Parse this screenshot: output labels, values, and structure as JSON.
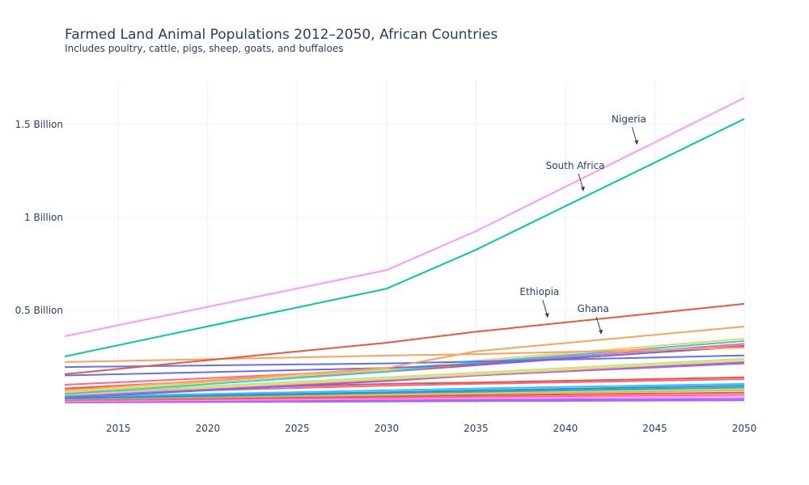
{
  "chart_data": {
    "type": "line",
    "title": "Farmed Land Animal Populations 2012–2050, African Countries",
    "subtitle": "Includes poultry, cattle, pigs, sheep, goats, and buffaloes",
    "xlabel": "",
    "ylabel": "",
    "x": [
      2012,
      2030,
      2035,
      2050
    ],
    "xlim": [
      2012,
      2050
    ],
    "ylim": [
      -0.02,
      1.75
    ],
    "y_unit": "Billion",
    "x_ticks": [
      2015,
      2020,
      2025,
      2030,
      2035,
      2040,
      2045,
      2050
    ],
    "y_ticks": [
      {
        "value": 0.5,
        "label": "0.5 Billion"
      },
      {
        "value": 1.0,
        "label": "1 Billion"
      },
      {
        "value": 1.5,
        "label": "1.5 Billion"
      }
    ],
    "grid": true,
    "legend": "none",
    "series": [
      {
        "name": "Nigeria",
        "color": "#FF97FF",
        "values": [
          0.361,
          0.717,
          0.926,
          1.643
        ]
      },
      {
        "name": "South Africa",
        "color": "#00CC96",
        "values": [
          0.252,
          0.617,
          0.826,
          1.53
        ]
      },
      {
        "name": "Ethiopia",
        "color": "#EF553B",
        "values": [
          0.157,
          0.326,
          0.385,
          0.535
        ]
      },
      {
        "name": "Ghana",
        "color": "#FFA15A",
        "values": [
          0.07,
          0.19,
          0.28,
          0.413
        ]
      },
      {
        "name": "",
        "color": "#FFA15A",
        "values": [
          0.222,
          0.257,
          0.265,
          0.3
        ]
      },
      {
        "name": "",
        "color": "#636EFA",
        "values": [
          0.195,
          0.215,
          0.225,
          0.258
        ]
      },
      {
        "name": "",
        "color": "#636EFA",
        "values": [
          0.15,
          0.19,
          0.21,
          0.305
        ]
      },
      {
        "name": "",
        "color": "#FECB52",
        "values": [
          0.06,
          0.18,
          0.23,
          0.348
        ]
      },
      {
        "name": "",
        "color": "#19D3F3",
        "values": [
          0.05,
          0.17,
          0.22,
          0.335
        ]
      },
      {
        "name": "",
        "color": "#FF6692",
        "values": [
          0.1,
          0.18,
          0.215,
          0.32
        ]
      },
      {
        "name": "",
        "color": "#EF553B",
        "values": [
          0.08,
          0.17,
          0.205,
          0.31
        ]
      },
      {
        "name": "",
        "color": "#B6E880",
        "values": [
          0.055,
          0.14,
          0.165,
          0.24
        ]
      },
      {
        "name": "",
        "color": "#FECB52",
        "values": [
          0.045,
          0.13,
          0.155,
          0.23
        ]
      },
      {
        "name": "",
        "color": "#AB63FA",
        "values": [
          0.04,
          0.125,
          0.15,
          0.215
        ]
      },
      {
        "name": "",
        "color": "#636EFA",
        "values": [
          0.03,
          0.12,
          0.15,
          0.22
        ]
      },
      {
        "name": "",
        "color": "#EF553B",
        "values": [
          0.06,
          0.105,
          0.112,
          0.14
        ]
      },
      {
        "name": "",
        "color": "#FF6692",
        "values": [
          0.05,
          0.095,
          0.105,
          0.13
        ]
      },
      {
        "name": "",
        "color": "#19D3F3",
        "values": [
          0.035,
          0.07,
          0.08,
          0.105
        ]
      },
      {
        "name": "",
        "color": "#636EFA",
        "values": [
          0.03,
          0.06,
          0.07,
          0.095
        ]
      },
      {
        "name": "",
        "color": "#00CC96",
        "values": [
          0.025,
          0.055,
          0.062,
          0.085
        ]
      },
      {
        "name": "",
        "color": "#B6E880",
        "values": [
          0.028,
          0.05,
          0.058,
          0.078
        ]
      },
      {
        "name": "",
        "color": "#FFA15A",
        "values": [
          0.022,
          0.045,
          0.052,
          0.07
        ]
      },
      {
        "name": "",
        "color": "#EF553B",
        "values": [
          0.02,
          0.038,
          0.044,
          0.058
        ]
      },
      {
        "name": "",
        "color": "#FF6692",
        "values": [
          0.016,
          0.03,
          0.035,
          0.046
        ]
      },
      {
        "name": "",
        "color": "#FF97FF",
        "values": [
          0.012,
          0.024,
          0.028,
          0.036
        ]
      },
      {
        "name": "",
        "color": "#AB63FA",
        "values": [
          0.008,
          0.016,
          0.019,
          0.025
        ]
      },
      {
        "name": "",
        "color": "#AB63FA",
        "values": [
          0.005,
          0.01,
          0.012,
          0.016
        ]
      }
    ],
    "annotations": [
      {
        "text": "Nigeria",
        "x": 2044,
        "y": 1.39
      },
      {
        "text": "South Africa",
        "x": 2041,
        "y": 1.14
      },
      {
        "text": "Ethiopia",
        "x": 2039,
        "y": 0.46
      },
      {
        "text": "Ghana",
        "x": 2042,
        "y": 0.37
      }
    ]
  }
}
